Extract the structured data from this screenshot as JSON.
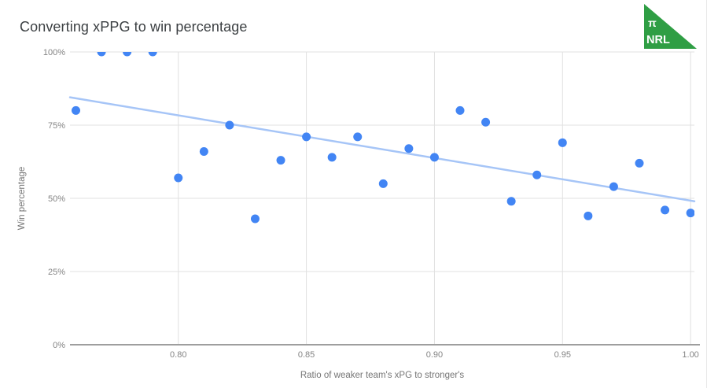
{
  "title": "Converting xPPG to win percentage",
  "logo": {
    "pi_symbol": "π",
    "text": "NRL",
    "color": "#2f9e44",
    "text_color": "#ffffff"
  },
  "chart_data": {
    "type": "scatter",
    "title": "Converting xPPG to win percentage",
    "xlabel": "Ratio of weaker team's xPG to stronger's",
    "ylabel": "Win percentage",
    "xlim": [
      0.7577,
      1.0015
    ],
    "ylim": [
      0,
      100
    ],
    "x_ticks": [
      0.8,
      0.85,
      0.9,
      0.95,
      1.0
    ],
    "x_tick_labels": [
      "0.80",
      "0.85",
      "0.90",
      "0.95",
      "1.00"
    ],
    "y_ticks": [
      0,
      25,
      50,
      75,
      100
    ],
    "y_tick_labels": [
      "0%",
      "25%",
      "50%",
      "75%",
      "100%"
    ],
    "grid": true,
    "legend": "none",
    "points": [
      [
        0.76,
        80
      ],
      [
        0.77,
        100
      ],
      [
        0.78,
        100
      ],
      [
        0.79,
        100
      ],
      [
        0.8,
        57
      ],
      [
        0.81,
        66
      ],
      [
        0.82,
        75
      ],
      [
        0.83,
        43
      ],
      [
        0.84,
        63
      ],
      [
        0.85,
        71
      ],
      [
        0.86,
        64
      ],
      [
        0.87,
        71
      ],
      [
        0.88,
        55
      ],
      [
        0.89,
        67
      ],
      [
        0.9,
        64
      ],
      [
        0.91,
        80
      ],
      [
        0.92,
        76
      ],
      [
        0.93,
        49
      ],
      [
        0.94,
        58
      ],
      [
        0.95,
        69
      ],
      [
        0.96,
        44
      ],
      [
        0.97,
        54
      ],
      [
        0.98,
        62
      ],
      [
        0.99,
        46
      ],
      [
        1.0,
        45
      ]
    ],
    "trendline": {
      "x1": 0.7577,
      "y1": 84.5,
      "x2": 1.0015,
      "y2": 49.0
    },
    "colors": {
      "point": "#4285f4",
      "trend": "#a6c5f7",
      "gridline": "#e0e0e0",
      "baseline": "#9e9e9e",
      "tick_label": "#848484",
      "axis_title": "#757575",
      "title": "#3c4043"
    }
  }
}
